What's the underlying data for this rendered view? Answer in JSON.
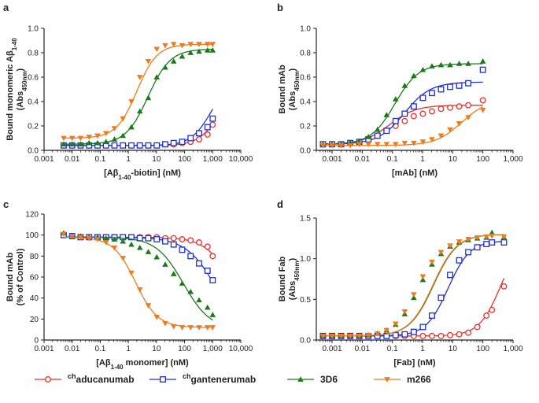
{
  "colors": {
    "aducanumab": "#e8302a",
    "gantenerumab": "#1f2fd6",
    "3D6": "#1a7a1a",
    "m266": "#f07b1c",
    "axis": "#222222"
  },
  "legend": [
    {
      "sup": "ch",
      "label": "aducanumab",
      "marker": "circle",
      "color_key": "aducanumab"
    },
    {
      "sup": "ch",
      "label": "gantenerumab",
      "marker": "square",
      "color_key": "gantenerumab"
    },
    {
      "sup": "",
      "label": "3D6",
      "marker": "triangle",
      "color_key": "3D6"
    },
    {
      "sup": "",
      "label": "m266",
      "marker": "triangle-down",
      "color_key": "m266"
    }
  ],
  "chart_data": [
    {
      "panel": "a",
      "type": "scatter",
      "xscale": "log",
      "xlim": [
        0.001,
        10000
      ],
      "ylim": [
        0,
        1.0
      ],
      "xticks": [
        0.001,
        0.01,
        0.1,
        1,
        10,
        100,
        1000,
        10000
      ],
      "xtick_labels": [
        "0.001",
        "0.01",
        "0.1",
        "1",
        "10",
        "100",
        "1,000",
        "10,000"
      ],
      "yticks": [
        0,
        0.2,
        0.4,
        0.6,
        0.8,
        1.0
      ],
      "ytick_labels": [
        "0.0",
        "0.2",
        "0.4",
        "0.6",
        "0.8",
        "1.0"
      ],
      "xlabel": "[Aβ1-40-biotin] (nM)",
      "ylabel": "Bound monomeric Aβ1-40",
      "ylabel2": "(Abs450nm)",
      "x": [
        0.005,
        0.01,
        0.02,
        0.04,
        0.08,
        0.16,
        0.32,
        0.64,
        1.28,
        2.56,
        5.12,
        10.24,
        20.48,
        40.96,
        81.92,
        163.84,
        327.68,
        655.36,
        1000
      ],
      "series": [
        {
          "name": "aducanumab",
          "y": [
            0.04,
            0.04,
            0.04,
            0.04,
            0.04,
            0.04,
            0.04,
            0.04,
            0.04,
            0.04,
            0.04,
            0.04,
            0.05,
            0.05,
            0.06,
            0.07,
            0.09,
            0.13,
            0.21
          ],
          "fit": {
            "bottom": 0.04,
            "top": 0.5,
            "ec50": 1500,
            "hill": 1.2
          }
        },
        {
          "name": "gantenerumab",
          "y": [
            0.04,
            0.04,
            0.04,
            0.04,
            0.04,
            0.04,
            0.04,
            0.04,
            0.04,
            0.04,
            0.04,
            0.04,
            0.05,
            0.06,
            0.07,
            0.1,
            0.14,
            0.19,
            0.26
          ],
          "fit": {
            "bottom": 0.04,
            "top": 0.6,
            "ec50": 900,
            "hill": 1.2
          }
        },
        {
          "name": "3D6",
          "y": [
            0.05,
            0.05,
            0.05,
            0.06,
            0.06,
            0.07,
            0.09,
            0.12,
            0.19,
            0.32,
            0.43,
            0.6,
            0.68,
            0.73,
            0.77,
            0.8,
            0.81,
            0.82,
            0.82
          ],
          "fit": {
            "bottom": 0.05,
            "top": 0.83,
            "ec50": 5.0,
            "hill": 1.1
          }
        },
        {
          "name": "m266",
          "y": [
            0.1,
            0.1,
            0.1,
            0.11,
            0.12,
            0.14,
            0.18,
            0.26,
            0.4,
            0.6,
            0.73,
            0.83,
            0.86,
            0.87,
            0.86,
            0.87,
            0.87,
            0.87,
            0.87
          ],
          "fit": {
            "bottom": 0.1,
            "top": 0.87,
            "ec50": 2.0,
            "hill": 1.2
          }
        }
      ]
    },
    {
      "panel": "b",
      "type": "scatter",
      "xscale": "log",
      "xlim": [
        0.0003,
        1000
      ],
      "ylim": [
        0,
        1.0
      ],
      "xticks": [
        0.001,
        0.01,
        0.1,
        1,
        10,
        100,
        1000
      ],
      "xtick_labels": [
        "0.001",
        "0.01",
        "0.1",
        "1",
        "10",
        "100",
        "1,000"
      ],
      "yticks": [
        0,
        0.2,
        0.4,
        0.6,
        0.8,
        1.0
      ],
      "ytick_labels": [
        "0.0",
        "0.2",
        "0.4",
        "0.6",
        "0.8",
        "1.0"
      ],
      "xlabel": "[mAb] (nM)",
      "ylabel": "Bound mAb",
      "ylabel2": "(Abs450nm)",
      "x": [
        0.0005,
        0.001,
        0.002,
        0.004,
        0.008,
        0.016,
        0.032,
        0.064,
        0.128,
        0.256,
        0.512,
        1.024,
        2.048,
        4.096,
        8.192,
        16.384,
        32.768,
        100
      ],
      "series": [
        {
          "name": "aducanumab",
          "y": [
            0.05,
            0.05,
            0.05,
            0.06,
            0.07,
            0.09,
            0.12,
            0.16,
            0.2,
            0.24,
            0.28,
            0.3,
            0.32,
            0.34,
            0.35,
            0.36,
            0.37,
            0.41
          ],
          "fit": {
            "bottom": 0.05,
            "top": 0.37,
            "ec50": 0.08,
            "hill": 1.0
          }
        },
        {
          "name": "gantenerumab",
          "y": [
            0.05,
            0.05,
            0.05,
            0.06,
            0.07,
            0.09,
            0.12,
            0.16,
            0.24,
            0.3,
            0.36,
            0.43,
            0.47,
            0.5,
            0.52,
            0.53,
            0.55,
            0.66
          ],
          "fit": {
            "bottom": 0.05,
            "top": 0.56,
            "ec50": 0.25,
            "hill": 1.0
          }
        },
        {
          "name": "3D6",
          "y": [
            0.05,
            0.05,
            0.05,
            0.06,
            0.07,
            0.11,
            0.17,
            0.29,
            0.42,
            0.53,
            0.61,
            0.66,
            0.69,
            0.7,
            0.7,
            0.71,
            0.71,
            0.73
          ],
          "fit": {
            "bottom": 0.05,
            "top": 0.71,
            "ec50": 0.12,
            "hill": 1.1
          }
        },
        {
          "name": "m266",
          "y": [
            0.04,
            0.04,
            0.04,
            0.04,
            0.05,
            0.05,
            0.05,
            0.05,
            0.05,
            0.06,
            0.06,
            0.07,
            0.09,
            0.12,
            0.17,
            0.22,
            0.27,
            0.33
          ],
          "fit": {
            "bottom": 0.04,
            "top": 0.42,
            "ec50": 20,
            "hill": 1.0
          }
        }
      ]
    },
    {
      "panel": "c",
      "type": "scatter",
      "xscale": "log",
      "xlim": [
        0.001,
        10000
      ],
      "ylim": [
        0,
        120
      ],
      "xticks": [
        0.001,
        0.01,
        0.1,
        1,
        10,
        100,
        1000,
        10000
      ],
      "xtick_labels": [
        "0.001",
        "0.01",
        "0.1",
        "1",
        "10",
        "100",
        "1,000",
        "10,000"
      ],
      "yticks": [
        0,
        20,
        40,
        60,
        80,
        100,
        120
      ],
      "ytick_labels": [
        "0",
        "20",
        "40",
        "60",
        "80",
        "100",
        "120"
      ],
      "xlabel": "[Aβ1-40 monomer] (nM)",
      "ylabel": "Bound mAb",
      "ylabel2": "(% of Control)",
      "x": [
        0.005,
        0.01,
        0.02,
        0.04,
        0.08,
        0.16,
        0.32,
        0.64,
        1.28,
        2.56,
        5.12,
        10.24,
        20.48,
        40.96,
        81.92,
        163.84,
        327.68,
        655.36,
        1000
      ],
      "series": [
        {
          "name": "aducanumab",
          "y": [
            100,
            99,
            98,
            98,
            98,
            98,
            98,
            98,
            98,
            98,
            98,
            98,
            97,
            97,
            96,
            95,
            93,
            89,
            80
          ],
          "fit": {
            "top": 98,
            "bottom": 0,
            "ic50": 6000,
            "hill": 0.9
          }
        },
        {
          "name": "gantenerumab",
          "y": [
            100,
            99,
            98,
            98,
            98,
            98,
            98,
            98,
            98,
            97,
            97,
            96,
            94,
            91,
            86,
            80,
            73,
            66,
            57
          ],
          "fit": {
            "top": 98,
            "bottom": 0,
            "ic50": 1400,
            "hill": 0.8
          }
        },
        {
          "name": "3D6",
          "y": [
            102,
            99,
            99,
            98,
            98,
            97,
            96,
            94,
            91,
            88,
            84,
            79,
            72,
            63,
            54,
            46,
            38,
            31,
            24
          ],
          "fit": {
            "top": 98,
            "bottom": 10,
            "ic50": 90,
            "hill": 0.9
          }
        },
        {
          "name": "m266",
          "y": [
            101,
            99,
            98,
            97,
            96,
            93,
            88,
            78,
            64,
            48,
            33,
            22,
            16,
            13,
            12,
            12,
            12,
            12,
            12
          ],
          "fit": {
            "top": 98,
            "bottom": 12,
            "ic50": 1.8,
            "hill": 1.1
          }
        }
      ]
    },
    {
      "panel": "d",
      "type": "scatter",
      "xscale": "log",
      "xlim": [
        0.0003,
        1000
      ],
      "ylim": [
        0,
        1.5
      ],
      "xticks": [
        0.001,
        0.01,
        0.1,
        1,
        10,
        100,
        1000
      ],
      "xtick_labels": [
        "0.001",
        "0.01",
        "0.1",
        "1",
        "10",
        "100",
        "1,000"
      ],
      "yticks": [
        0,
        0.5,
        1.0,
        1.5
      ],
      "ytick_labels": [
        "0.0",
        "0.5",
        "1.0",
        "1.5"
      ],
      "xlabel": "[Fab] (nM)",
      "ylabel": "Bound Fab",
      "ylabel2": "(Abs450nm)",
      "x": [
        0.0005,
        0.001,
        0.002,
        0.004,
        0.008,
        0.016,
        0.032,
        0.064,
        0.128,
        0.256,
        0.512,
        1.024,
        2.048,
        4.096,
        8.192,
        16.384,
        32.768,
        65.536,
        131.072,
        200,
        500
      ],
      "series": [
        {
          "name": "aducanumab",
          "y": [
            0.05,
            0.05,
            0.05,
            0.05,
            0.05,
            0.05,
            0.05,
            0.05,
            0.05,
            0.05,
            0.05,
            0.05,
            0.05,
            0.05,
            0.06,
            0.07,
            0.09,
            0.16,
            0.3,
            0.37,
            0.66
          ],
          "fit": {
            "bottom": 0.05,
            "top": 1.3,
            "ec50": 400,
            "hill": 1.2
          }
        },
        {
          "name": "gantenerumab",
          "y": [
            0.05,
            0.05,
            0.05,
            0.05,
            0.05,
            0.05,
            0.05,
            0.05,
            0.06,
            0.07,
            0.1,
            0.16,
            0.3,
            0.52,
            0.8,
            0.98,
            1.08,
            1.14,
            1.18,
            1.2,
            1.2
          ],
          "fit": {
            "bottom": 0.05,
            "top": 1.22,
            "ec50": 7.0,
            "hill": 1.2
          }
        },
        {
          "name": "3D6",
          "y": [
            0.05,
            0.05,
            0.05,
            0.05,
            0.05,
            0.06,
            0.08,
            0.12,
            0.19,
            0.32,
            0.52,
            0.74,
            0.93,
            1.06,
            1.15,
            1.2,
            1.23,
            1.25,
            1.26,
            1.32,
            1.26
          ],
          "fit": {
            "bottom": 0.05,
            "top": 1.3,
            "ec50": 2.3,
            "hill": 1.1
          }
        },
        {
          "name": "m266",
          "y": [
            0.05,
            0.05,
            0.05,
            0.05,
            0.05,
            0.06,
            0.08,
            0.12,
            0.2,
            0.35,
            0.56,
            0.78,
            0.96,
            1.08,
            1.16,
            1.21,
            1.24,
            1.26,
            1.27,
            1.28,
            1.27
          ],
          "fit": {
            "bottom": 0.05,
            "top": 1.3,
            "ec50": 2.2,
            "hill": 1.1
          }
        }
      ]
    }
  ]
}
